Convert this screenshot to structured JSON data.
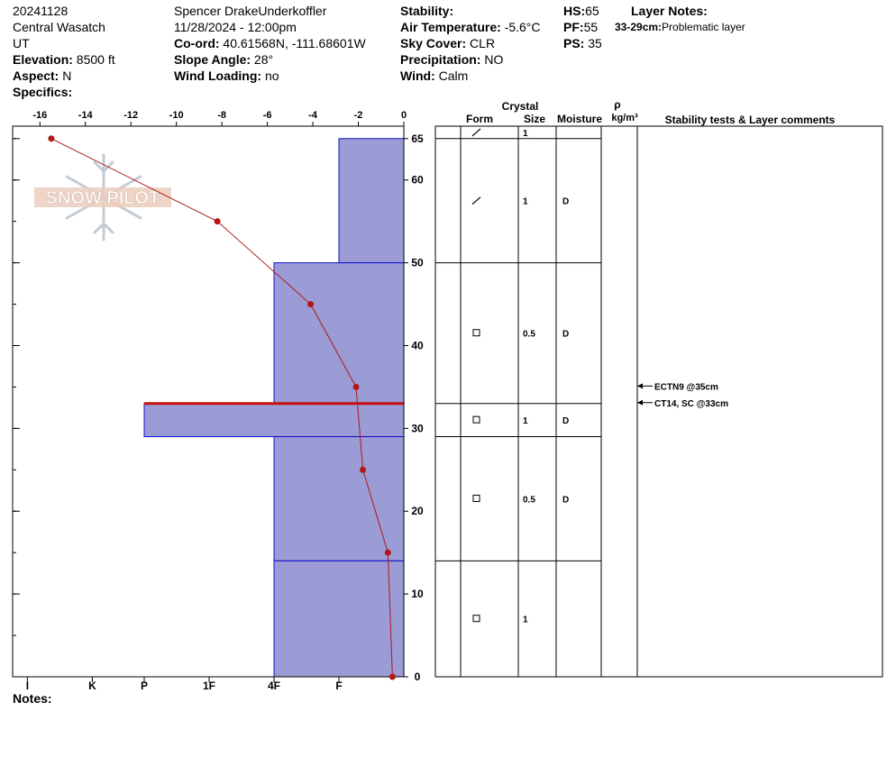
{
  "header": {
    "col1": {
      "date_id": "20241128",
      "range": "Central Wasatch",
      "state": "UT",
      "elevation_label": "Elevation:",
      "elevation_value": " 8500 ft",
      "aspect_label": "Aspect:",
      "aspect_value": " N",
      "specifics_label": "Specifics:"
    },
    "col2": {
      "observer": "Spencer DrakeUnderkoffler",
      "datetime": "11/28/2024 - 12:00pm",
      "coord_label": "Co-ord:",
      "coord_value": " 40.61568N, -111.68601W",
      "slope_label": "Slope Angle:",
      "slope_value": " 28°",
      "wind_loading_label": "Wind Loading:",
      "wind_loading_value": " no"
    },
    "col3": {
      "stability_label": "Stability:",
      "air_temp_label": "Air Temperature:",
      "air_temp_value": " -5.6°C",
      "sky_label": "Sky Cover:",
      "sky_value": " CLR",
      "precip_label": "Precipitation:",
      "precip_value": " NO",
      "wind_label": "Wind:",
      "wind_value": "  Calm"
    },
    "col4": {
      "hs_label": "HS:",
      "hs_value": "65",
      "pf_label": "PF:",
      "pf_value": "55",
      "ps_label": "PS:",
      "ps_value": " 35"
    },
    "layer_notes": {
      "title": "Layer Notes:",
      "range": "33-29cm:",
      "text": "Problematic layer"
    }
  },
  "notes_label": "Notes:",
  "watermark": "SNOW PILOT",
  "chart_data": {
    "type": "bar",
    "temperature_axis": {
      "ticks": [
        "-16",
        "-14",
        "-12",
        "-10",
        "-8",
        "-6",
        "-4",
        "-2",
        "0"
      ],
      "values": [
        -16,
        -14,
        -12,
        -10,
        -8,
        -6,
        -4,
        -2,
        0
      ],
      "xlim": [
        -17.2,
        0
      ]
    },
    "height_axis": {
      "ticks": [
        "0",
        "10",
        "20",
        "30",
        "40",
        "50",
        "60",
        "65"
      ],
      "values": [
        0,
        10,
        20,
        30,
        40,
        50,
        60,
        65
      ],
      "ylim": [
        0,
        66.5
      ]
    },
    "hardness_axis": {
      "labels": [
        "I",
        "K",
        "P",
        "1F",
        "4F",
        "F"
      ],
      "values": [
        5.8,
        4.8,
        4,
        3,
        2,
        1
      ]
    },
    "temperature_profile": {
      "heights": [
        65,
        55,
        45,
        35,
        25,
        15,
        0
      ],
      "temps": [
        -15.5,
        -8.2,
        -4.1,
        -2.1,
        -1.8,
        -0.7,
        -0.5
      ]
    },
    "hardness_layers": [
      {
        "top": 65,
        "bottom": 50,
        "hardness": 1
      },
      {
        "top": 50,
        "bottom": 33,
        "hardness": 2
      },
      {
        "top": 33,
        "bottom": 29,
        "hardness": 4
      },
      {
        "top": 29,
        "bottom": 14,
        "hardness": 2
      },
      {
        "top": 14,
        "bottom": 0,
        "hardness": 2
      }
    ],
    "problem_layer_top": 33,
    "layer_table": {
      "head": {
        "crystal": "Crystal",
        "form": "Form",
        "size": "Size",
        "moisture": "Moisture",
        "rho": "ρ",
        "density_unit": "kg/m³",
        "stability": "Stability tests & Layer comments"
      },
      "layers": [
        {
          "top": 66.5,
          "bottom": 65,
          "form": "slash",
          "size": "1",
          "moisture": ""
        },
        {
          "top": 65,
          "bottom": 50,
          "form": "slash",
          "size": "1",
          "moisture": "D"
        },
        {
          "top": 50,
          "bottom": 33,
          "form": "square",
          "size": "0.5",
          "moisture": "D"
        },
        {
          "top": 33,
          "bottom": 29,
          "form": "square",
          "size": "1",
          "moisture": "D"
        },
        {
          "top": 29,
          "bottom": 14,
          "form": "square",
          "size": "0.5",
          "moisture": "D"
        },
        {
          "top": 14,
          "bottom": 0,
          "form": "square",
          "size": "1",
          "moisture": ""
        }
      ],
      "stability_tests": [
        {
          "label": "ECTN9 @35cm",
          "height": 35
        },
        {
          "label": "CT14, SC @33cm",
          "height": 33
        }
      ]
    }
  }
}
